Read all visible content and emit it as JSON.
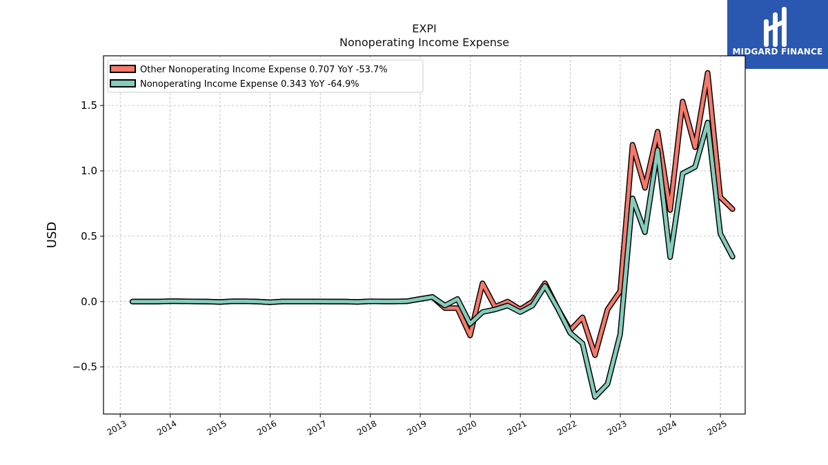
{
  "brand": {
    "name": "MIDGARD FINANCE",
    "color": "#2a57b0"
  },
  "chart_data": {
    "type": "line",
    "title": "EXPI",
    "subtitle": "Nonoperating Income Expense",
    "ylabel": "USD",
    "xlabel": "",
    "xlim": [
      "2012-09-01",
      "2025-07-01"
    ],
    "ylim": [
      -0.86,
      1.88
    ],
    "x_ticks": [
      "2013",
      "2014",
      "2015",
      "2016",
      "2017",
      "2018",
      "2019",
      "2020",
      "2021",
      "2022",
      "2023",
      "2024",
      "2025"
    ],
    "y_ticks": [
      -0.5,
      0.0,
      0.5,
      1.0,
      1.5
    ],
    "y_tick_labels": [
      "−0.5",
      "0.0",
      "0.5",
      "1.0",
      "1.5"
    ],
    "grid": true,
    "legend_position": "top-left",
    "series": [
      {
        "name": "Other Nonoperating Income Expense",
        "legend_label": "Other Nonoperating Income Expense  0.707 YoY -53.7%",
        "color": "#f4796b",
        "points": [
          [
            "2013-03-31",
            0.0
          ],
          [
            "2013-06-30",
            0.0
          ],
          [
            "2013-09-30",
            0.0
          ],
          [
            "2013-12-31",
            0.003
          ],
          [
            "2014-03-31",
            0.002
          ],
          [
            "2014-06-30",
            0.001
          ],
          [
            "2014-09-30",
            0.0
          ],
          [
            "2014-12-31",
            -0.003
          ],
          [
            "2015-03-31",
            0.002
          ],
          [
            "2015-06-30",
            0.002
          ],
          [
            "2015-09-30",
            0.0
          ],
          [
            "2015-12-31",
            -0.005
          ],
          [
            "2016-03-31",
            0.001
          ],
          [
            "2016-06-30",
            0.001
          ],
          [
            "2016-09-30",
            0.001
          ],
          [
            "2016-12-31",
            0.001
          ],
          [
            "2017-03-31",
            0.0
          ],
          [
            "2017-06-30",
            0.0
          ],
          [
            "2017-09-30",
            -0.002
          ],
          [
            "2017-12-31",
            0.002
          ],
          [
            "2018-03-31",
            0.001
          ],
          [
            "2018-06-30",
            0.001
          ],
          [
            "2018-09-30",
            0.003
          ],
          [
            "2018-12-31",
            0.02
          ],
          [
            "2019-03-31",
            0.035
          ],
          [
            "2019-06-30",
            -0.05
          ],
          [
            "2019-09-30",
            -0.05
          ],
          [
            "2019-12-31",
            -0.26
          ],
          [
            "2020-03-31",
            0.14
          ],
          [
            "2020-06-30",
            -0.04
          ],
          [
            "2020-09-30",
            0.0
          ],
          [
            "2020-12-31",
            -0.06
          ],
          [
            "2021-03-31",
            0.0
          ],
          [
            "2021-06-30",
            0.14
          ],
          [
            "2021-09-30",
            -0.05
          ],
          [
            "2021-12-31",
            -0.22
          ],
          [
            "2022-03-31",
            -0.12
          ],
          [
            "2022-06-30",
            -0.41
          ],
          [
            "2022-09-30",
            -0.06
          ],
          [
            "2022-12-31",
            0.08
          ],
          [
            "2023-03-31",
            1.2
          ],
          [
            "2023-06-30",
            0.87
          ],
          [
            "2023-09-30",
            1.3
          ],
          [
            "2023-12-31",
            0.7
          ],
          [
            "2024-03-31",
            1.53
          ],
          [
            "2024-06-30",
            1.18
          ],
          [
            "2024-09-30",
            1.75
          ],
          [
            "2024-12-31",
            0.8
          ],
          [
            "2025-03-31",
            0.707
          ]
        ]
      },
      {
        "name": "Nonoperating Income Expense",
        "legend_label": "Nonoperating Income Expense  0.343 YoY -64.9%",
        "color": "#84ccbb",
        "points": [
          [
            "2013-03-31",
            0.0
          ],
          [
            "2013-06-30",
            0.0
          ],
          [
            "2013-09-30",
            0.0
          ],
          [
            "2013-12-31",
            0.003
          ],
          [
            "2014-03-31",
            0.002
          ],
          [
            "2014-06-30",
            0.001
          ],
          [
            "2014-09-30",
            0.0
          ],
          [
            "2014-12-31",
            -0.003
          ],
          [
            "2015-03-31",
            0.002
          ],
          [
            "2015-06-30",
            0.002
          ],
          [
            "2015-09-30",
            0.0
          ],
          [
            "2015-12-31",
            -0.005
          ],
          [
            "2016-03-31",
            0.001
          ],
          [
            "2016-06-30",
            0.001
          ],
          [
            "2016-09-30",
            0.001
          ],
          [
            "2016-12-31",
            0.001
          ],
          [
            "2017-03-31",
            0.0
          ],
          [
            "2017-06-30",
            0.0
          ],
          [
            "2017-09-30",
            -0.002
          ],
          [
            "2017-12-31",
            0.002
          ],
          [
            "2018-03-31",
            0.001
          ],
          [
            "2018-06-30",
            0.001
          ],
          [
            "2018-09-30",
            0.003
          ],
          [
            "2018-12-31",
            0.02
          ],
          [
            "2019-03-31",
            0.035
          ],
          [
            "2019-06-30",
            -0.03
          ],
          [
            "2019-09-30",
            0.02
          ],
          [
            "2019-12-31",
            -0.17
          ],
          [
            "2020-03-31",
            -0.08
          ],
          [
            "2020-06-30",
            -0.06
          ],
          [
            "2020-09-30",
            -0.03
          ],
          [
            "2020-12-31",
            -0.08
          ],
          [
            "2021-03-31",
            -0.03
          ],
          [
            "2021-06-30",
            0.12
          ],
          [
            "2021-09-30",
            -0.05
          ],
          [
            "2021-12-31",
            -0.24
          ],
          [
            "2022-03-31",
            -0.32
          ],
          [
            "2022-06-30",
            -0.73
          ],
          [
            "2022-09-30",
            -0.63
          ],
          [
            "2022-12-31",
            -0.25
          ],
          [
            "2023-03-31",
            0.79
          ],
          [
            "2023-06-30",
            0.53
          ],
          [
            "2023-09-30",
            1.16
          ],
          [
            "2023-12-31",
            0.34
          ],
          [
            "2024-03-31",
            0.98
          ],
          [
            "2024-06-30",
            1.03
          ],
          [
            "2024-09-30",
            1.37
          ],
          [
            "2024-12-31",
            0.52
          ],
          [
            "2025-03-31",
            0.343
          ]
        ]
      }
    ]
  }
}
